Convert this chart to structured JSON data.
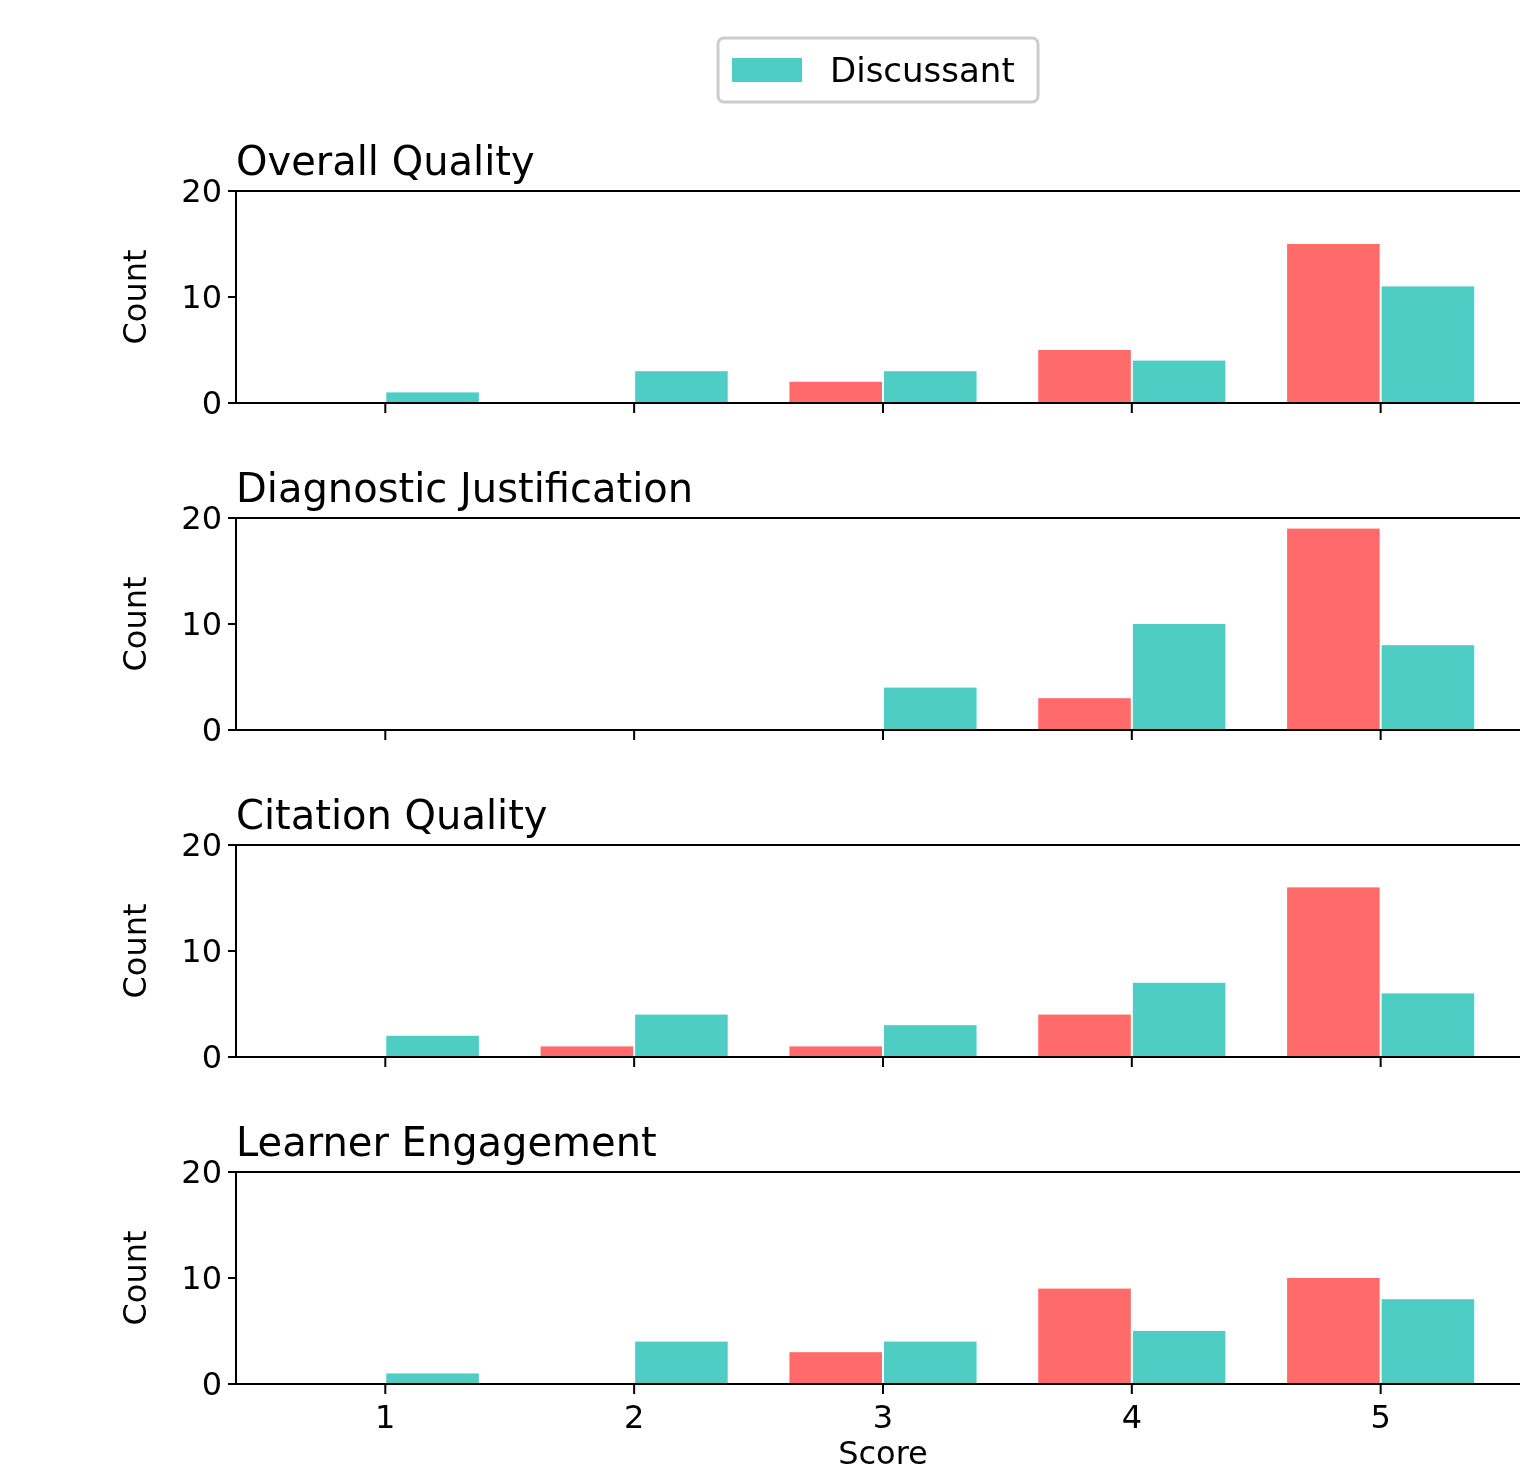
{
  "chart_data": [
    {
      "type": "bar",
      "title": "Overall Quality",
      "ylabel": "Count",
      "categories": [
        "1",
        "2",
        "3",
        "4",
        "5"
      ],
      "ylim": [
        0,
        20
      ],
      "yticks": [
        0,
        10,
        20
      ],
      "tick_labels": "y",
      "legend": "top",
      "series": [
        {
          "color": "#ff6b6b",
          "values": [
            0,
            0,
            2,
            5,
            15
          ]
        },
        {
          "name": "Discussant",
          "color": "#4ecdc4",
          "values": [
            1,
            3,
            3,
            4,
            11
          ]
        }
      ]
    },
    {
      "type": "bar",
      "title": "Diagnostic Justification",
      "ylabel": "Count",
      "categories": [
        "1",
        "2",
        "3",
        "4",
        "5"
      ],
      "ylim": [
        0,
        20
      ],
      "yticks": [
        0,
        10,
        20
      ],
      "tick_labels": "y",
      "series": [
        {
          "color": "#ff6b6b",
          "values": [
            0,
            0,
            0,
            3,
            19
          ]
        },
        {
          "color": "#4ecdc4",
          "values": [
            0,
            0,
            4,
            10,
            8
          ]
        }
      ]
    },
    {
      "type": "bar",
      "title": "Citation Quality",
      "ylabel": "Count",
      "categories": [
        "1",
        "2",
        "3",
        "4",
        "5"
      ],
      "ylim": [
        0,
        20
      ],
      "yticks": [
        0,
        10,
        20
      ],
      "tick_labels": "y",
      "series": [
        {
          "color": "#ff6b6b",
          "values": [
            0,
            1,
            1,
            4,
            16
          ]
        },
        {
          "color": "#4ecdc4",
          "values": [
            2,
            4,
            3,
            7,
            6
          ]
        }
      ]
    },
    {
      "type": "bar",
      "title": "Learner Engagement",
      "ylabel": "Count",
      "xlabel": "Score",
      "categories": [
        "1",
        "2",
        "3",
        "4",
        "5"
      ],
      "ylim": [
        0,
        20
      ],
      "yticks": [
        0,
        10,
        20
      ],
      "series": [
        {
          "color": "#ff6b6b",
          "values": [
            0,
            0,
            3,
            9,
            10
          ]
        },
        {
          "color": "#4ecdc4",
          "values": [
            1,
            4,
            4,
            5,
            8
          ]
        }
      ]
    }
  ]
}
